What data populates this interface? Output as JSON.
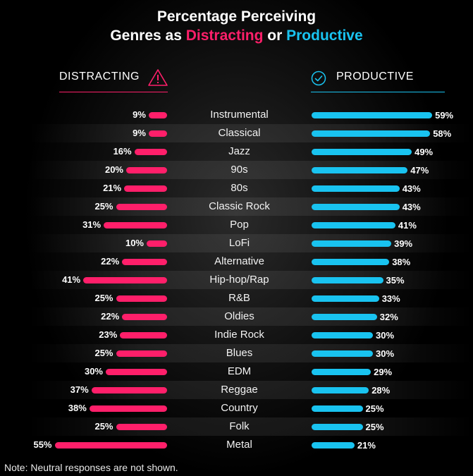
{
  "chart_data": {
    "type": "bar",
    "title_line1": "Percentage Perceiving",
    "title_line2_prefix": "Genres as ",
    "title_distracting": "Distracting",
    "title_or": " or ",
    "title_productive": "Productive",
    "left_header": "DISTRACTING",
    "right_header": "PRODUCTIVE",
    "colors": {
      "distracting": "#ff1f6a",
      "productive": "#19c3f0"
    },
    "categories": [
      "Instrumental",
      "Classical",
      "Jazz",
      "90s",
      "80s",
      "Classic Rock",
      "Pop",
      "LoFi",
      "Alternative",
      "Hip-hop/Rap",
      "R&B",
      "Oldies",
      "Indie Rock",
      "Blues",
      "EDM",
      "Reggae",
      "Country",
      "Folk",
      "Metal"
    ],
    "series": [
      {
        "name": "Distracting",
        "values": [
          9,
          9,
          16,
          20,
          21,
          25,
          31,
          10,
          22,
          41,
          25,
          22,
          23,
          25,
          30,
          37,
          38,
          25,
          55
        ]
      },
      {
        "name": "Productive",
        "values": [
          59,
          58,
          49,
          47,
          43,
          43,
          41,
          39,
          38,
          35,
          33,
          32,
          30,
          30,
          29,
          28,
          25,
          25,
          21
        ]
      }
    ],
    "value_suffix": "%",
    "note": "Note: Neutral responses are not shown."
  }
}
